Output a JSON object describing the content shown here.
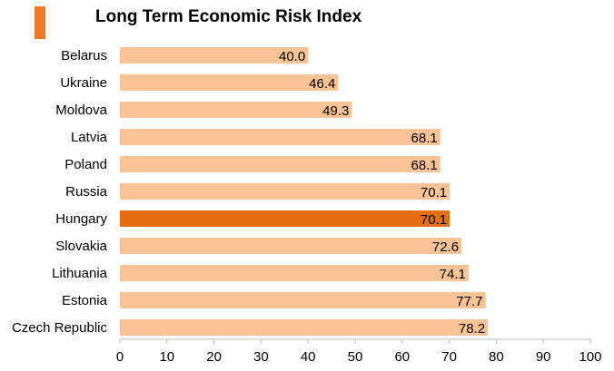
{
  "title": "Long Term Economic Risk Index",
  "colors": {
    "accent": "#EE7A28",
    "bar": "#F9C395",
    "highlight_bar": "#E46E12",
    "axis": "#BFBFBF"
  },
  "chart_data": {
    "type": "bar",
    "orientation": "horizontal",
    "title": "Long Term Economic Risk Index",
    "categories": [
      "Belarus",
      "Ukraine",
      "Moldova",
      "Latvia",
      "Poland",
      "Russia",
      "Hungary",
      "Slovakia",
      "Lithuania",
      "Estonia",
      "Czech Republic"
    ],
    "values": [
      40.0,
      46.4,
      49.3,
      68.1,
      68.1,
      70.1,
      70.1,
      72.6,
      74.1,
      77.7,
      78.2
    ],
    "data_labels": [
      "40.0",
      "46.4",
      "49.3",
      "68.1",
      "68.1",
      "70.1",
      "70.1",
      "72.6",
      "74.1",
      "77.7",
      "78.2"
    ],
    "highlight_category": "Hungary",
    "xlim": [
      0,
      100
    ],
    "xticks": [
      0,
      10,
      20,
      30,
      40,
      50,
      60,
      70,
      80,
      90,
      100
    ],
    "xlabel": "",
    "ylabel": "",
    "grid": false,
    "legend": "none"
  }
}
